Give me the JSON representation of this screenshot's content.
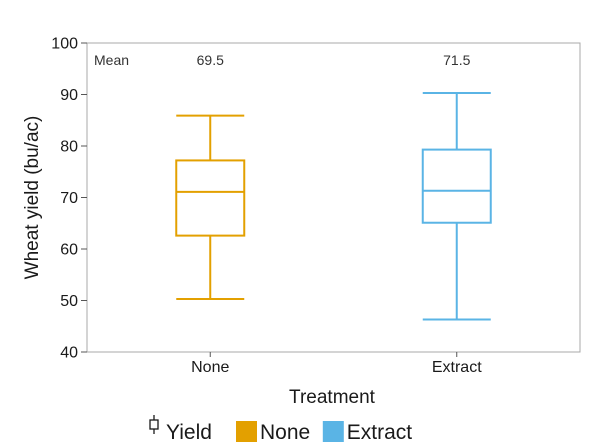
{
  "chart_data": {
    "type": "box",
    "xlabel": "Treatment",
    "ylabel": "Wheat yield (bu/ac)",
    "ylim": [
      40,
      100
    ],
    "yticks": [
      40,
      50,
      60,
      70,
      80,
      90,
      100
    ],
    "categories": [
      "None",
      "Extract"
    ],
    "grid": false,
    "mean_label": "Mean",
    "boxes": [
      {
        "category": "None",
        "min": 50.3,
        "q1": 62.6,
        "median": 71.1,
        "q3": 77.2,
        "max": 85.9,
        "mean": "69.5",
        "color": "#E3A000"
      },
      {
        "category": "Extract",
        "min": 46.3,
        "q1": 65.1,
        "median": 71.3,
        "q3": 79.3,
        "max": 90.3,
        "mean": "71.5",
        "color": "#5AB4E5"
      }
    ],
    "legend": {
      "placement": "bottom",
      "variable_label": "Yield",
      "variable_icon": "box-whisker-icon",
      "entries": [
        {
          "label": "None",
          "color": "#E3A000"
        },
        {
          "label": "Extract",
          "color": "#5AB4E5"
        }
      ]
    }
  }
}
